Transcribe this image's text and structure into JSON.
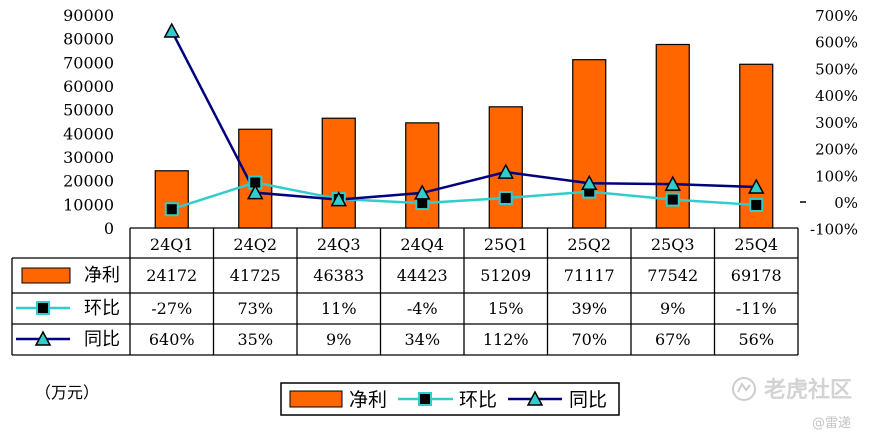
{
  "chart_data": {
    "type": "bar",
    "categories": [
      "24Q1",
      "24Q2",
      "24Q3",
      "24Q4",
      "25Q1",
      "25Q2",
      "25Q3",
      "25Q4"
    ],
    "series": [
      {
        "name": "净利",
        "type": "bar",
        "axis": "left",
        "values": [
          24172,
          41725,
          46383,
          44423,
          51209,
          71117,
          77542,
          69178
        ]
      },
      {
        "name": "环比",
        "type": "line",
        "axis": "right",
        "marker": "square",
        "values": [
          -27,
          73,
          11,
          -4,
          15,
          39,
          9,
          -11
        ]
      },
      {
        "name": "同比",
        "type": "line",
        "axis": "right",
        "marker": "triangle",
        "values": [
          640,
          35,
          9,
          34,
          112,
          70,
          67,
          56
        ]
      }
    ],
    "table_rows": [
      [
        "24172",
        "41725",
        "46383",
        "44423",
        "51209",
        "71117",
        "77542",
        "69178"
      ],
      [
        "-27%",
        "73%",
        "11%",
        "-4%",
        "15%",
        "39%",
        "9%",
        "-11%"
      ],
      [
        "640%",
        "35%",
        "9%",
        "34%",
        "112%",
        "70%",
        "67%",
        "56%"
      ]
    ],
    "left_axis": {
      "ticks": [
        "0",
        "10000",
        "20000",
        "30000",
        "40000",
        "50000",
        "60000",
        "70000",
        "80000",
        "90000"
      ],
      "ylim": [
        0,
        90000
      ]
    },
    "right_axis": {
      "ticks": [
        "-100%",
        "0%",
        "100%",
        "200%",
        "300%",
        "400%",
        "500%",
        "600%",
        "700%"
      ],
      "ylim": [
        -100,
        700
      ]
    },
    "unit_label": "（万元）",
    "colors": {
      "bar": "#FF6600",
      "huanbi": "#33CCCC",
      "tongbi": "#000080"
    },
    "grid": false,
    "legend_position": "bottom",
    "legend": [
      "净利",
      "环比",
      "同比"
    ]
  },
  "watermark": {
    "icon": "tiger-logo-icon",
    "text": "老虎社区",
    "author": "@雷递"
  }
}
